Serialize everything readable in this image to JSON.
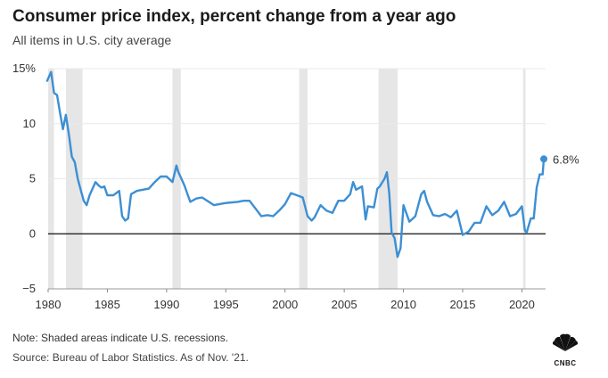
{
  "header": {
    "title": "Consumer price index, percent change from a year ago",
    "subtitle": "All items in U.S. city average"
  },
  "footer": {
    "note": "Note: Shaded areas indicate U.S. recessions.",
    "source": "Source: Bureau of Labor Statistics. As of Nov. '21.",
    "logo_text": "CNBC"
  },
  "colors": {
    "line": "#3d8fd3",
    "recession": "#e6e6e6",
    "grid": "#e9e9e9",
    "zero": "#111111"
  },
  "chart_data": {
    "type": "line",
    "title": "Consumer price index, percent change from a year ago",
    "subtitle": "All items in U.S. city average",
    "xlabel": "",
    "ylabel": "",
    "xlim": [
      1980,
      2022
    ],
    "ylim": [
      -5,
      15
    ],
    "y_ticks": [
      -5,
      0,
      5,
      10,
      15
    ],
    "y_tick_labels": [
      "−5",
      "0",
      "5",
      "10",
      "15%"
    ],
    "x_ticks": [
      1980,
      1985,
      1990,
      1995,
      2000,
      2005,
      2010,
      2015,
      2020
    ],
    "x_tick_labels": [
      "1980",
      "1985",
      "1990",
      "1995",
      "2000",
      "2005",
      "2010",
      "2015",
      "2020"
    ],
    "grid": true,
    "recessions": [
      [
        1980.0,
        1980.5
      ],
      [
        1981.5,
        1982.9
      ],
      [
        1990.5,
        1991.2
      ],
      [
        2001.2,
        2001.9
      ],
      [
        2007.9,
        2009.5
      ],
      [
        2020.1,
        2020.3
      ]
    ],
    "end_label": "6.8%",
    "series": [
      {
        "name": "CPI all items, % change from a year ago",
        "x": [
          1979.92,
          1980.25,
          1980.5,
          1980.75,
          1981.0,
          1981.25,
          1981.5,
          1981.75,
          1982.0,
          1982.25,
          1982.5,
          1982.75,
          1983.0,
          1983.25,
          1983.5,
          1983.75,
          1984.0,
          1984.25,
          1984.5,
          1984.75,
          1985.0,
          1985.5,
          1986.0,
          1986.25,
          1986.5,
          1986.75,
          1987.0,
          1987.5,
          1988.0,
          1988.5,
          1989.0,
          1989.5,
          1990.0,
          1990.5,
          1990.83,
          1991.0,
          1991.25,
          1991.5,
          1992.0,
          1992.5,
          1993.0,
          1994.0,
          1995.0,
          1996.0,
          1996.5,
          1997.0,
          1997.5,
          1998.0,
          1998.5,
          1999.0,
          1999.5,
          2000.0,
          2000.5,
          2001.0,
          2001.5,
          2001.9,
          2002.25,
          2002.5,
          2003.0,
          2003.5,
          2004.0,
          2004.5,
          2005.0,
          2005.5,
          2005.75,
          2006.0,
          2006.5,
          2006.8,
          2007.0,
          2007.5,
          2007.8,
          2008.0,
          2008.4,
          2008.6,
          2008.8,
          2009.0,
          2009.25,
          2009.5,
          2009.75,
          2010.0,
          2010.5,
          2011.0,
          2011.5,
          2011.75,
          2012.0,
          2012.5,
          2013.0,
          2013.5,
          2014.0,
          2014.5,
          2015.0,
          2015.5,
          2016.0,
          2016.5,
          2017.0,
          2017.5,
          2018.0,
          2018.5,
          2019.0,
          2019.5,
          2020.0,
          2020.25,
          2020.4,
          2020.75,
          2021.0,
          2021.25,
          2021.5,
          2021.75,
          2021.85
        ],
        "values": [
          13.9,
          14.7,
          12.8,
          12.6,
          11.0,
          9.5,
          10.8,
          9.0,
          7.0,
          6.5,
          5.0,
          4.0,
          3.0,
          2.6,
          3.5,
          4.1,
          4.7,
          4.4,
          4.2,
          4.3,
          3.5,
          3.5,
          3.9,
          1.6,
          1.2,
          1.4,
          3.6,
          3.9,
          4.0,
          4.1,
          4.7,
          5.2,
          5.2,
          4.7,
          6.2,
          5.6,
          5.0,
          4.4,
          2.9,
          3.2,
          3.3,
          2.6,
          2.8,
          2.9,
          3.0,
          3.0,
          2.3,
          1.6,
          1.7,
          1.6,
          2.1,
          2.7,
          3.7,
          3.5,
          3.3,
          1.6,
          1.2,
          1.5,
          2.6,
          2.1,
          1.9,
          3.0,
          3.0,
          3.6,
          4.7,
          4.0,
          4.3,
          1.3,
          2.5,
          2.4,
          4.1,
          4.3,
          5.0,
          5.6,
          3.7,
          0.1,
          -0.4,
          -2.1,
          -1.3,
          2.6,
          1.1,
          1.6,
          3.6,
          3.9,
          2.9,
          1.7,
          1.6,
          1.8,
          1.5,
          2.1,
          -0.1,
          0.2,
          1.0,
          1.0,
          2.5,
          1.7,
          2.1,
          2.9,
          1.6,
          1.8,
          2.5,
          0.3,
          0.1,
          1.4,
          1.4,
          4.2,
          5.4,
          5.4,
          6.8
        ]
      }
    ]
  }
}
